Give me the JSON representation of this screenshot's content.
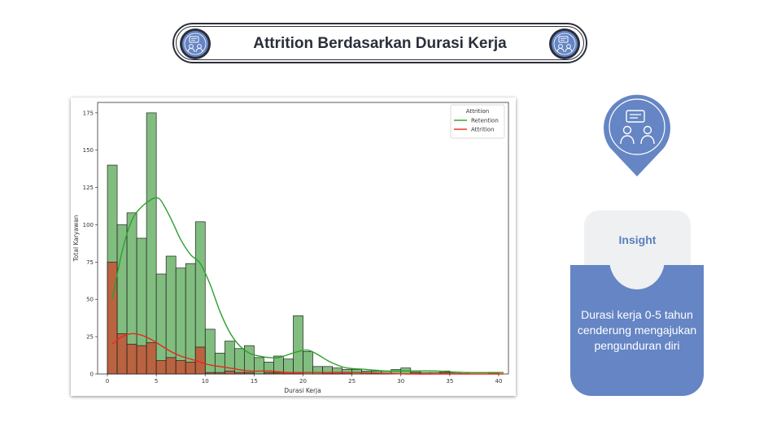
{
  "header": {
    "title": "Attrition Berdasarkan Durasi Kerja",
    "icon": "team-discussion-icon"
  },
  "insight": {
    "label": "Insight",
    "text": "Durasi kerja 0-5 tahun cenderung mengajukan pengunduran diri",
    "icon": "team-discussion-icon"
  },
  "colors": {
    "accent": "#6585c4",
    "dark": "#2b2f3a",
    "retention": "#2ca02c",
    "attrition": "#e8291c"
  },
  "chart_data": {
    "type": "bar",
    "title": "",
    "xlabel": "Durasi Kerja",
    "ylabel": "Total Karyawan",
    "xlim": [
      -1,
      41
    ],
    "ylim": [
      0,
      182
    ],
    "xticks": [
      0,
      5,
      10,
      15,
      20,
      25,
      30,
      35,
      40
    ],
    "yticks": [
      0,
      25,
      50,
      75,
      100,
      125,
      150,
      175
    ],
    "legend": {
      "title": "Attrition",
      "position": "top-right",
      "entries": [
        "Retention",
        "Attrition"
      ]
    },
    "bin_width": 1,
    "bin_start": 0,
    "series": [
      {
        "name": "Retention",
        "values": [
          140,
          100,
          108,
          91,
          175,
          67,
          79,
          71,
          74,
          102,
          30,
          14,
          22,
          17,
          19,
          11,
          8,
          12,
          10,
          39,
          15,
          5,
          5,
          4,
          3,
          3,
          2,
          2,
          2,
          3,
          4,
          2,
          1,
          1,
          2,
          1,
          1,
          0,
          0,
          1
        ]
      },
      {
        "name": "Attrition",
        "values": [
          75,
          27,
          20,
          19,
          21,
          9,
          11,
          9,
          8,
          18,
          1,
          1,
          2,
          1,
          1,
          0,
          1,
          1,
          1,
          1,
          0,
          0,
          1,
          1,
          1,
          0,
          0,
          0,
          0,
          0,
          0,
          1,
          0,
          0,
          1,
          0,
          0,
          0,
          0,
          1
        ]
      }
    ],
    "kde": [
      {
        "name": "Retention",
        "x": [
          0,
          1,
          2,
          3,
          4,
          4.5,
          5,
          6,
          7,
          8,
          9,
          10,
          11,
          12,
          13,
          14,
          15,
          16,
          17,
          18,
          19,
          20,
          21,
          22,
          23,
          24,
          26,
          28,
          30,
          33,
          36,
          40
        ],
        "y": [
          50,
          82,
          103,
          112,
          117,
          118,
          116,
          104,
          90,
          80,
          74,
          60,
          42,
          28,
          19,
          14,
          12,
          11,
          11,
          13,
          15,
          16,
          13,
          9,
          6,
          4,
          3,
          2,
          2,
          2,
          1,
          1
        ]
      },
      {
        "name": "Attrition",
        "x": [
          0,
          1,
          2,
          3,
          4,
          5,
          6,
          7,
          8,
          9,
          10,
          12,
          14,
          16,
          18,
          20,
          22,
          25,
          30,
          35,
          40
        ],
        "y": [
          20,
          25,
          27,
          26,
          23,
          19,
          15,
          12,
          10,
          8,
          6,
          4,
          2,
          2,
          1,
          1,
          1,
          1,
          0,
          0,
          0
        ]
      }
    ]
  }
}
